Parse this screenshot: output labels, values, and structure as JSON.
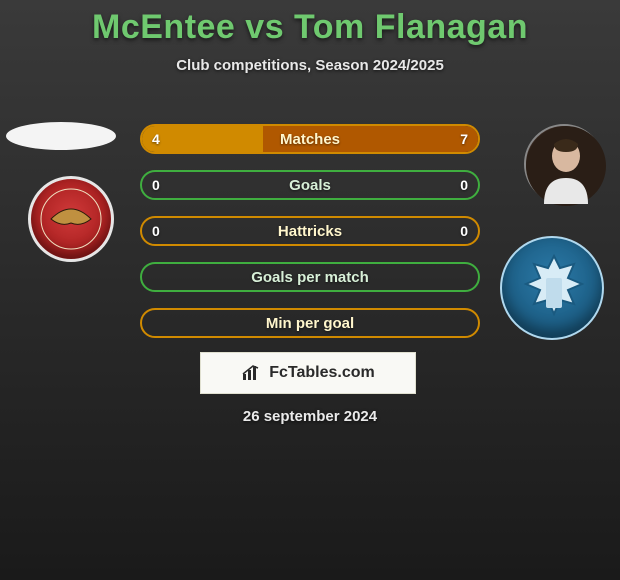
{
  "title": "McEntee vs Tom Flanagan",
  "subtitle": "Club competitions, Season 2024/2025",
  "date": "26 september 2024",
  "fctables_label": "FcTables.com",
  "theme": {
    "title_color": "#6fc96f",
    "text_color": "#e8e8e8",
    "bg_top": "#3a3a3a",
    "bg_bottom": "#1a1a1a"
  },
  "stats": [
    {
      "label": "Matches",
      "left_value": "4",
      "right_value": "7",
      "left_fill_pct": 36,
      "right_fill_pct": 64,
      "border_color": "#d08a00",
      "left_fill_color": "#d08a00",
      "right_fill_color": "#b05800",
      "label_color": "#fff6cc"
    },
    {
      "label": "Goals",
      "left_value": "0",
      "right_value": "0",
      "left_fill_pct": 0,
      "right_fill_pct": 0,
      "border_color": "#3fae3f",
      "left_fill_color": "#3fae3f",
      "right_fill_color": "#2e8a2e",
      "label_color": "#d8f0d8"
    },
    {
      "label": "Hattricks",
      "left_value": "0",
      "right_value": "0",
      "left_fill_pct": 0,
      "right_fill_pct": 0,
      "border_color": "#d08a00",
      "left_fill_color": "#d08a00",
      "right_fill_color": "#b05800",
      "label_color": "#fff6cc"
    },
    {
      "label": "Goals per match",
      "left_value": "",
      "right_value": "",
      "left_fill_pct": 0,
      "right_fill_pct": 0,
      "border_color": "#3fae3f",
      "left_fill_color": "#3fae3f",
      "right_fill_color": "#2e8a2e",
      "label_color": "#d8f0d8"
    },
    {
      "label": "Min per goal",
      "left_value": "",
      "right_value": "",
      "left_fill_pct": 0,
      "right_fill_pct": 0,
      "border_color": "#d08a00",
      "left_fill_color": "#d08a00",
      "right_fill_color": "#b05800",
      "label_color": "#fff6cc"
    }
  ],
  "left_club": "Walsall FC",
  "right_club": "Colchester United FC",
  "player_left": "McEntee",
  "player_right": "Tom Flanagan"
}
